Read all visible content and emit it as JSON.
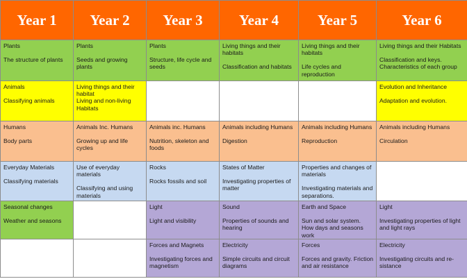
{
  "colors": {
    "header": "#ff6600",
    "plants": "#92d050",
    "animals": "#ffff00",
    "humans": "#fabf8f",
    "materials": "#c6d9f1",
    "seasonal": "#92d050",
    "physics": "#b4a7d6",
    "empty": "#ffffff"
  },
  "headers": [
    "Year 1",
    "Year 2",
    "Year 3",
    "Year 4",
    "Year 5",
    "Year 6"
  ],
  "rows": [
    {
      "cells": [
        {
          "title": "Plants",
          "sub": "The structure of plants",
          "color": "#92d050"
        },
        {
          "title": "Plants",
          "sub": "Seeds and growing plants",
          "color": "#92d050"
        },
        {
          "title": "Plants",
          "sub": "Structure, life cycle and seeds",
          "color": "#92d050"
        },
        {
          "title": "Living things and their habitats",
          "sub": "Classification and habitats",
          "color": "#92d050"
        },
        {
          "title": "Living things and their habitats",
          "sub": "Life cycles and reproduction",
          "color": "#92d050"
        },
        {
          "title": "Living things and their Habitats",
          "sub": "Classification and keys. Characteristics of each group",
          "color": "#92d050"
        }
      ]
    },
    {
      "cells": [
        {
          "title": "Animals",
          "sub": "Classifying  animals",
          "color": "#ffff00"
        },
        {
          "title": "Living things and their habitat",
          "sub": "Living and non-living Habitats",
          "color": "#ffff00",
          "tight": true
        },
        {
          "title": "",
          "sub": "",
          "color": "#ffffff"
        },
        {
          "title": "",
          "sub": "",
          "color": "#ffffff"
        },
        {
          "title": "",
          "sub": "",
          "color": "#ffffff"
        },
        {
          "title": "Evolution and Inheritance",
          "sub": "Adaptation and evolution.",
          "color": "#ffff00"
        }
      ]
    },
    {
      "cells": [
        {
          "title": "Humans",
          "sub": "Body parts",
          "color": "#fabf8f"
        },
        {
          "title": "Animals Inc. Humans",
          "sub": "Growing up and life cycles",
          "color": "#fabf8f"
        },
        {
          "title": "Animals inc. Humans",
          "sub": "Nutrition, skeleton and foods",
          "color": "#fabf8f"
        },
        {
          "title": "Animals including Humans",
          "sub": "Digestion",
          "color": "#fabf8f"
        },
        {
          "title": "Animals including Humans",
          "sub": "Reproduction",
          "color": "#fabf8f"
        },
        {
          "title": "Animals including Humans",
          "sub": "Circulation",
          "color": "#fabf8f"
        }
      ]
    },
    {
      "cells": [
        {
          "title": "Everyday Materials",
          "sub": "Classifying  materials",
          "color": "#c6d9f1"
        },
        {
          "title": "Use of  everyday materials",
          "sub": "Classifying and using materials",
          "color": "#c6d9f1"
        },
        {
          "title": "Rocks",
          "sub": "Rocks fossils and soil",
          "color": "#c6d9f1"
        },
        {
          "title": "States of Matter",
          "sub": "Investigating properties of matter",
          "color": "#c6d9f1"
        },
        {
          "title": "Properties and changes of materials",
          "sub": "Investigating materials and separations.",
          "color": "#c6d9f1"
        },
        {
          "title": "",
          "sub": "",
          "color": "#ffffff"
        }
      ]
    },
    {
      "cells": [
        {
          "title": "Seasonal changes",
          "sub": "Weather and  seasons",
          "color": "#92d050"
        },
        {
          "title": "",
          "sub": "",
          "color": "#ffffff"
        },
        {
          "title": "Light",
          "sub": "Light and visibility",
          "color": "#b4a7d6"
        },
        {
          "title": "Sound",
          "sub": "Properties of sounds and hearing",
          "color": "#b4a7d6"
        },
        {
          "title": "Earth and Space",
          "sub": "Sun and solar system. How days and seasons work",
          "color": "#b4a7d6"
        },
        {
          "title": "Light",
          "sub": "Investigating properties of light and light rays",
          "color": "#b4a7d6"
        }
      ]
    },
    {
      "cells": [
        {
          "title": "",
          "sub": "",
          "color": "#ffffff"
        },
        {
          "title": "",
          "sub": "",
          "color": "#ffffff"
        },
        {
          "title": "Forces and Magnets",
          "sub": "Investigating forces and magnetism",
          "color": "#b4a7d6"
        },
        {
          "title": "Electricity",
          "sub": "Simple circuits  and circuit diagrams",
          "color": "#b4a7d6"
        },
        {
          "title": "Forces",
          "sub": "Forces and gravity. Friction and air resistance",
          "color": "#b4a7d6"
        },
        {
          "title": "Electricity",
          "sub": "Investigating circuits and   re-sistance",
          "color": "#b4a7d6"
        }
      ]
    }
  ]
}
